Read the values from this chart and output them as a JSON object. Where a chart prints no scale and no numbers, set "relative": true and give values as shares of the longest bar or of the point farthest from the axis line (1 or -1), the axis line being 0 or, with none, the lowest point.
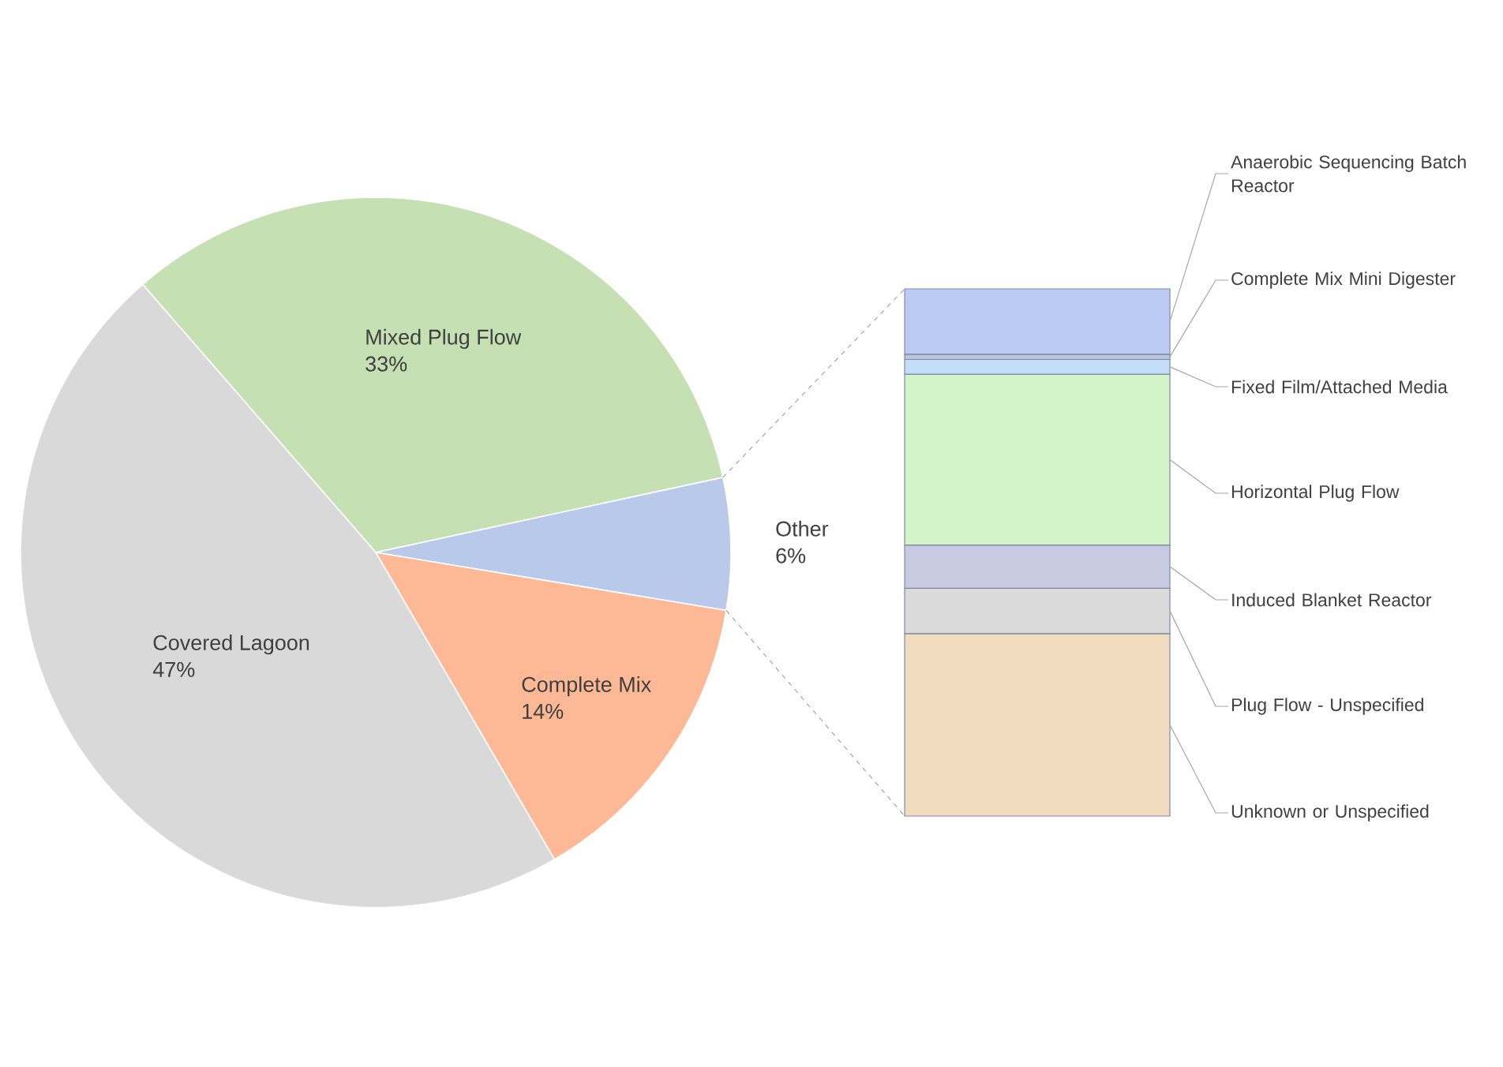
{
  "chart_data": [
    {
      "type": "pie",
      "categories": [
        "Mixed Plug Flow",
        "Other",
        "Complete Mix",
        "Covered Lagoon"
      ],
      "values": [
        33,
        6,
        14,
        47
      ],
      "value_labels": [
        "33%",
        "6%",
        "14%",
        "47%"
      ],
      "colors": [
        "#c5e0b3",
        "#b9c9ea",
        "#fdb896",
        "#d9d9d9"
      ]
    },
    {
      "type": "bar",
      "stacked": true,
      "relative": true,
      "categories": [
        null
      ],
      "series": [
        {
          "name": "Unknown or Unspecified",
          "color": "#f2dcc0",
          "values": [
            0.346
          ]
        },
        {
          "name": "Plug Flow - Unspecified",
          "color": "#dadada",
          "values": [
            0.086
          ]
        },
        {
          "name": "Induced Blanket Reactor",
          "color": "#c6cbe2",
          "values": [
            0.082
          ]
        },
        {
          "name": "Horizontal Plug Flow",
          "color": "#d3f3c8",
          "values": [
            0.324
          ]
        },
        {
          "name": "Fixed Film/Attached Media",
          "color": "#c4ddf7",
          "values": [
            0.028
          ]
        },
        {
          "name": "Complete Mix Mini Digester",
          "color": "#b7c6dd",
          "values": [
            0.01
          ]
        },
        {
          "name": "Anaerobic Sequencing Batch Reactor",
          "color": "#bccbf3",
          "values": [
            0.124
          ]
        }
      ]
    }
  ]
}
